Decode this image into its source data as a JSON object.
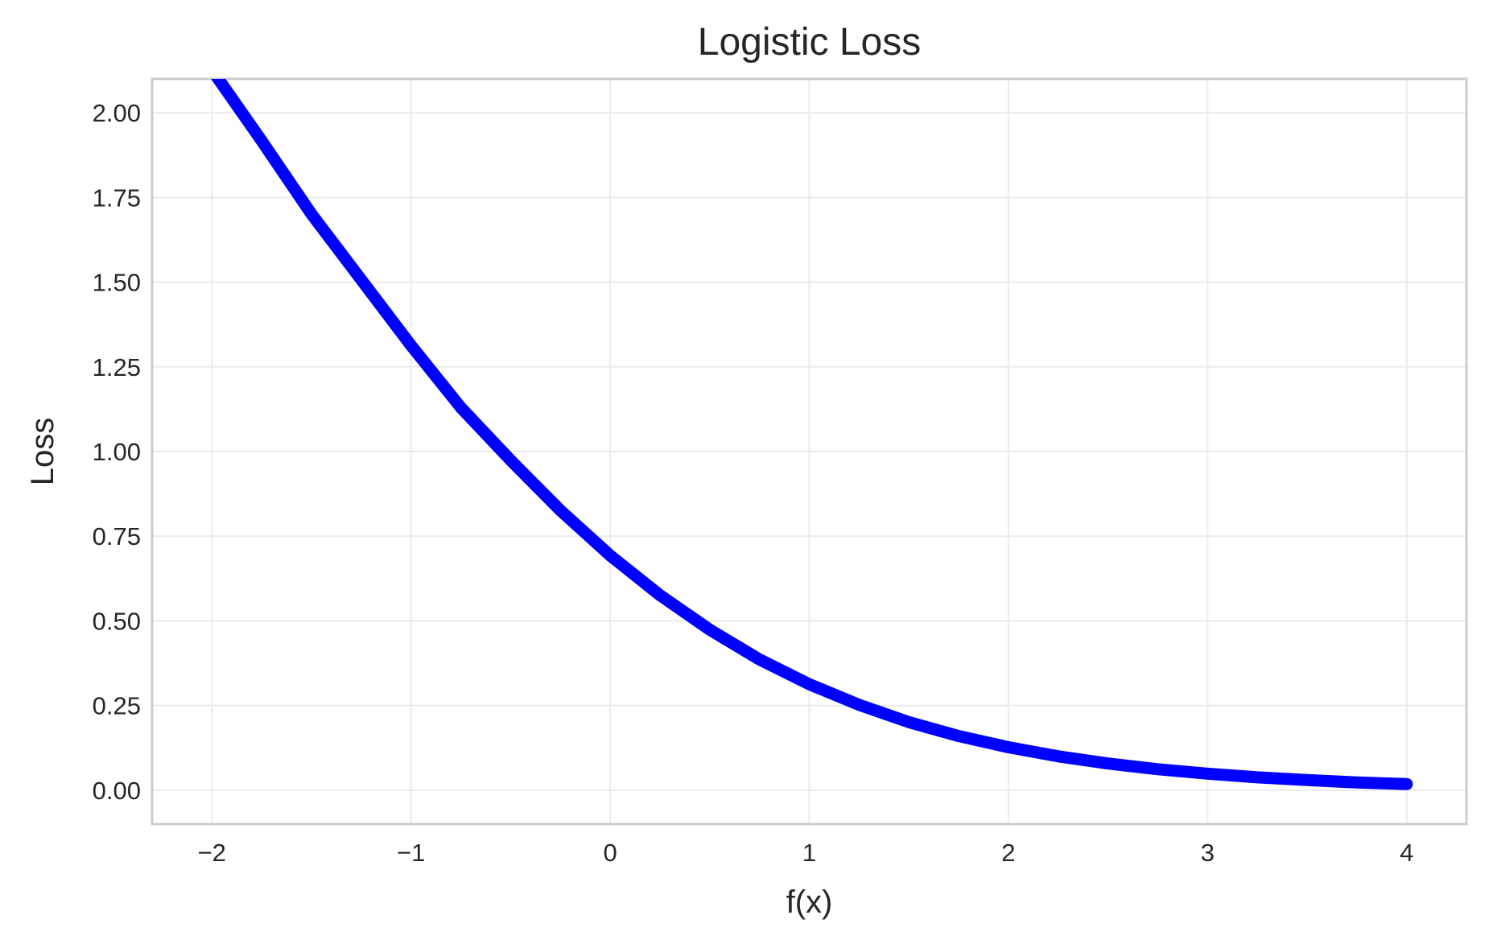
{
  "chart_data": {
    "type": "line",
    "title": "Logistic Loss",
    "xlabel": "f(x)",
    "ylabel": "Loss",
    "xlim": [
      -2.3,
      4.3
    ],
    "ylim": [
      -0.1,
      2.1
    ],
    "x_ticks": [
      -2,
      -1,
      0,
      1,
      2,
      3,
      4
    ],
    "x_tick_labels": [
      "−2",
      "−1",
      "0",
      "1",
      "2",
      "3",
      "4"
    ],
    "y_ticks": [
      0,
      0.25,
      0.5,
      0.75,
      1.0,
      1.25,
      1.5,
      1.75,
      2.0
    ],
    "y_tick_labels": [
      "0.00",
      "0.25",
      "0.50",
      "0.75",
      "1.00",
      "1.25",
      "1.50",
      "1.75",
      "2.00"
    ],
    "grid": true,
    "series": [
      {
        "color": "#0000ff",
        "x": [
          -2.0,
          -1.75,
          -1.5,
          -1.25,
          -1.0,
          -0.75,
          -0.5,
          -0.25,
          0.0,
          0.25,
          0.5,
          0.75,
          1.0,
          1.25,
          1.5,
          1.75,
          2.0,
          2.25,
          2.5,
          2.75,
          3.0,
          3.25,
          3.5,
          3.75,
          4.0
        ],
        "y": [
          2.127,
          1.917,
          1.701,
          1.507,
          1.313,
          1.13,
          0.974,
          0.826,
          0.693,
          0.576,
          0.474,
          0.386,
          0.313,
          0.252,
          0.201,
          0.16,
          0.127,
          0.1,
          0.079,
          0.062,
          0.049,
          0.038,
          0.03,
          0.023,
          0.018
        ]
      }
    ]
  }
}
